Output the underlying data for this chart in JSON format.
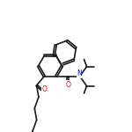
{
  "background_color": "#ffffff",
  "bond_color": "#1a1a1a",
  "o_color": "#ff0000",
  "n_color": "#0000cc",
  "lw": 1.2,
  "figsize": [
    1.5,
    1.5
  ],
  "dpi": 100,
  "xlim": [
    0.0,
    10.0
  ],
  "ylim": [
    0.0,
    10.0
  ]
}
